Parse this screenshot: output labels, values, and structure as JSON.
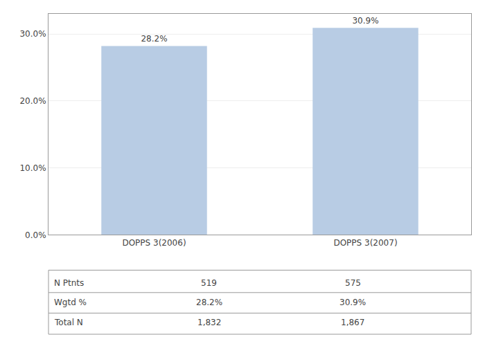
{
  "chart_data": {
    "type": "bar",
    "categories": [
      "DOPPS 3(2006)",
      "DOPPS 3(2007)"
    ],
    "values": [
      28.2,
      30.9
    ],
    "value_labels": [
      "28.2%",
      "30.9%"
    ],
    "data_labels": true,
    "color": "#b8cce4",
    "ylim": [
      0,
      33
    ],
    "yticks": [
      {
        "value": 0,
        "label": "0.0%"
      },
      {
        "value": 10,
        "label": "10.0%"
      },
      {
        "value": 20,
        "label": "20.0%"
      },
      {
        "value": 30,
        "label": "30.0%"
      }
    ],
    "grid": true,
    "table": {
      "rows": [
        "N Ptnts",
        "Wgtd %",
        "Total N"
      ],
      "cells": [
        [
          "519",
          "575"
        ],
        [
          "28.2%",
          "30.9%"
        ],
        [
          "1,832",
          "1,867"
        ]
      ]
    }
  }
}
